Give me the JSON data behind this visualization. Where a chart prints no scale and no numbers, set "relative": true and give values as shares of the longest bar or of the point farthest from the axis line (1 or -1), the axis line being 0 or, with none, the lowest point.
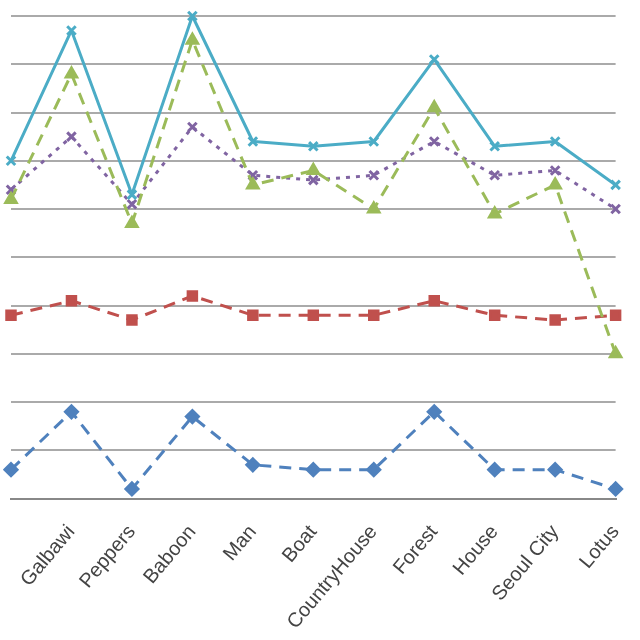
{
  "chart_data": {
    "type": "line",
    "relative": true,
    "grid": "y",
    "legend": false,
    "categories": [
      null,
      "Galbawi",
      "Peppers",
      "Baboon",
      "Man",
      "Boat",
      "CountryHouse",
      "Forest",
      "House",
      "Seoul City",
      "Lotus"
    ],
    "series": [
      {
        "color": "#4bacc6",
        "marker": "cross",
        "line_style": "solid",
        "values": [
          0.7,
          0.97,
          0.63,
          1.0,
          0.74,
          0.73,
          0.74,
          0.91,
          0.73,
          0.74,
          0.65
        ]
      },
      {
        "color": "#9bbb59",
        "marker": "triangle",
        "line_style": "dashed",
        "values": [
          0.62,
          0.88,
          0.57,
          0.95,
          0.65,
          0.68,
          0.6,
          0.81,
          0.59,
          0.65,
          0.3
        ]
      },
      {
        "color": "#8064a2",
        "marker": "cross",
        "line_style": "dotted",
        "values": [
          0.64,
          0.75,
          0.61,
          0.77,
          0.67,
          0.66,
          0.67,
          0.74,
          0.67,
          0.68,
          0.6
        ]
      },
      {
        "color": "#c0504d",
        "marker": "square",
        "line_style": "dashed",
        "values": [
          0.38,
          0.41,
          0.37,
          0.42,
          0.38,
          0.38,
          0.38,
          0.41,
          0.38,
          0.37,
          0.38
        ]
      },
      {
        "color": "#4f81bd",
        "marker": "diamond",
        "line_style": "dashed",
        "values": [
          0.06,
          0.18,
          0.02,
          0.17,
          0.07,
          0.06,
          0.06,
          0.18,
          0.06,
          0.06,
          0.02
        ]
      }
    ]
  }
}
